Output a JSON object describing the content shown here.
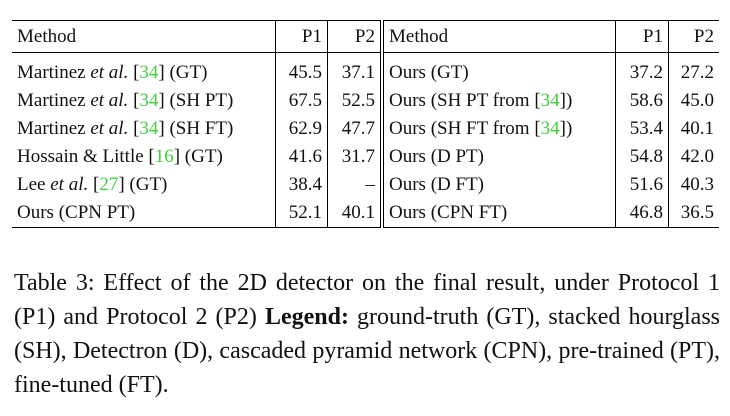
{
  "table": {
    "header": [
      "Method",
      "P1",
      "P2",
      "Method",
      "P1",
      "P2"
    ],
    "rows": [
      {
        "left": {
          "method": [
            "Martinez ",
            "et al.",
            " [",
            "34",
            "] (GT)"
          ],
          "p1": "45.5",
          "p2": "37.1"
        },
        "right": {
          "method": [
            "Ours (GT)"
          ],
          "p1": "37.2",
          "p2": "27.2"
        }
      },
      {
        "left": {
          "method": [
            "Martinez ",
            "et al.",
            " [",
            "34",
            "] (SH PT)"
          ],
          "p1": "67.5",
          "p2": "52.5"
        },
        "right": {
          "method": [
            "Ours (SH PT from [",
            "34",
            "])"
          ],
          "p1": "58.6",
          "p2": "45.0"
        }
      },
      {
        "left": {
          "method": [
            "Martinez ",
            "et al.",
            " [",
            "34",
            "] (SH FT)"
          ],
          "p1": "62.9",
          "p2": "47.7"
        },
        "right": {
          "method": [
            "Ours (SH FT from [",
            "34",
            "])"
          ],
          "p1": "53.4",
          "p2": "40.1"
        }
      },
      {
        "left": {
          "method": [
            "Hossain & Little [",
            "16",
            "] (GT)"
          ],
          "p1": "41.6",
          "p2": "31.7"
        },
        "right": {
          "method": [
            "Ours (D PT)"
          ],
          "p1": "54.8",
          "p2": "42.0"
        }
      },
      {
        "left": {
          "method": [
            "Lee ",
            "et al.",
            " [",
            "27",
            "] (GT)"
          ],
          "p1": "38.4",
          "p2": "–"
        },
        "right": {
          "method": [
            "Ours (D FT)"
          ],
          "p1": "51.6",
          "p2": "40.3"
        }
      },
      {
        "left": {
          "method": [
            "Ours (CPN PT)"
          ],
          "p1": "52.1",
          "p2": "40.1"
        },
        "right": {
          "method": [
            "Ours (CPN FT)"
          ],
          "p1": "46.8",
          "p2": "36.5"
        }
      }
    ]
  },
  "caption": {
    "text": "Table 3: Effect of the 2D detector on the final result, under Protocol 1 (P1) and Protocol 2 (P2) ",
    "legend_label": "Legend:",
    "legend_text": " ground-truth (GT), stacked hourglass (SH), Detectron (D), cascaded pyramid network (CPN), pre-trained (PT), fine-tuned (FT)."
  }
}
